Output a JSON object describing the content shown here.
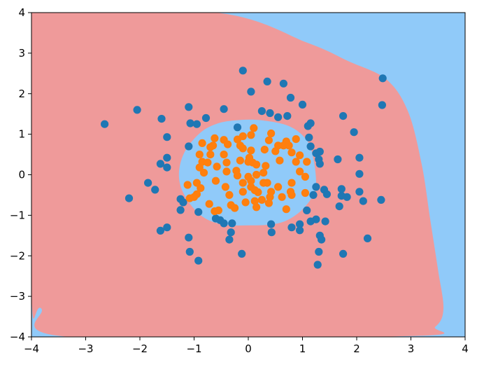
{
  "chart_data": {
    "type": "scatter",
    "title": "",
    "xlabel": "",
    "ylabel": "",
    "xlim": [
      -4,
      4
    ],
    "ylim": [
      -4,
      4
    ],
    "grid": false,
    "x_ticks": [
      -4,
      -3,
      -2,
      -1,
      0,
      1,
      2,
      3,
      4
    ],
    "y_ticks": [
      -4,
      -3,
      -2,
      -1,
      0,
      1,
      2,
      3,
      4
    ],
    "x_tick_labels": [
      "−4",
      "−3",
      "−2",
      "−1",
      "0",
      "1",
      "2",
      "3",
      "4"
    ],
    "y_tick_labels": [
      "−4",
      "−3",
      "−2",
      "−1",
      "0",
      "1",
      "2",
      "3",
      "4"
    ],
    "decision_regions": {
      "background_class_color": "#90caf9",
      "outer_class_color": "#ef9a9a",
      "outer_region_boundary": [
        [
          -4,
          3.98
        ],
        [
          -0.6,
          4
        ],
        [
          1.1,
          3.25
        ],
        [
          1.85,
          2.8
        ],
        [
          2.55,
          2.35
        ],
        [
          2.95,
          1.55
        ],
        [
          3.2,
          0.25
        ],
        [
          3.35,
          -1.05
        ],
        [
          3.5,
          -2.35
        ],
        [
          3.6,
          -3.3
        ],
        [
          3.45,
          -3.75
        ],
        [
          3.0,
          -3.98
        ],
        [
          -3.3,
          -4
        ],
        [
          -3.82,
          -3.3
        ],
        [
          -4,
          -2.95
        ]
      ],
      "inner_region_boundary": [
        [
          -0.25,
          1.34
        ],
        [
          0.2,
          1.35
        ],
        [
          0.75,
          1.2
        ],
        [
          1.08,
          0.85
        ],
        [
          1.2,
          0.4
        ],
        [
          1.25,
          -0.2
        ],
        [
          1.18,
          -0.55
        ],
        [
          0.92,
          -0.95
        ],
        [
          0.55,
          -1.2
        ],
        [
          0.0,
          -1.25
        ],
        [
          -0.5,
          -1.22
        ],
        [
          -0.88,
          -1.0
        ],
        [
          -1.18,
          -0.5
        ],
        [
          -1.28,
          0.0
        ],
        [
          -1.18,
          0.55
        ],
        [
          -0.9,
          1.02
        ],
        [
          -0.6,
          1.25
        ]
      ]
    },
    "series": [
      {
        "color": "#1f77b4",
        "points": [
          [
            -2.65,
            1.25
          ],
          [
            -2.05,
            1.6
          ],
          [
            -1.85,
            -0.2
          ],
          [
            -2.2,
            -0.58
          ],
          [
            -1.72,
            -0.37
          ],
          [
            -1.6,
            1.38
          ],
          [
            -1.5,
            0.93
          ],
          [
            -1.5,
            0.42
          ],
          [
            -1.62,
            0.27
          ],
          [
            -1.5,
            0.18
          ],
          [
            -1.5,
            -1.3
          ],
          [
            -1.62,
            -1.38
          ],
          [
            -1.1,
            1.67
          ],
          [
            -1.07,
            1.27
          ],
          [
            -0.95,
            1.25
          ],
          [
            -0.78,
            1.4
          ],
          [
            -0.45,
            1.62
          ],
          [
            -1.1,
            0.7
          ],
          [
            -1.25,
            -0.6
          ],
          [
            -1.2,
            -0.68
          ],
          [
            -1.25,
            -0.87
          ],
          [
            -0.92,
            -0.92
          ],
          [
            -0.6,
            -1.08
          ],
          [
            -0.52,
            -1.12
          ],
          [
            -0.45,
            -1.2
          ],
          [
            -0.3,
            -1.2
          ],
          [
            -1.1,
            -1.55
          ],
          [
            -1.08,
            -1.9
          ],
          [
            -0.92,
            -2.12
          ],
          [
            -0.32,
            -1.42
          ],
          [
            -0.35,
            -1.6
          ],
          [
            -0.12,
            -1.95
          ],
          [
            -0.2,
            1.17
          ],
          [
            -0.1,
            2.57
          ],
          [
            0.05,
            2.05
          ],
          [
            0.35,
            2.3
          ],
          [
            0.25,
            1.57
          ],
          [
            0.4,
            1.52
          ],
          [
            0.55,
            1.42
          ],
          [
            0.65,
            2.25
          ],
          [
            0.78,
            1.9
          ],
          [
            0.72,
            1.45
          ],
          [
            1.0,
            1.73
          ],
          [
            1.1,
            1.2
          ],
          [
            1.15,
            1.27
          ],
          [
            1.12,
            0.92
          ],
          [
            1.15,
            0.7
          ],
          [
            1.25,
            0.53
          ],
          [
            1.32,
            0.57
          ],
          [
            1.3,
            0.38
          ],
          [
            1.32,
            0.27
          ],
          [
            1.25,
            -0.3
          ],
          [
            1.4,
            -0.37
          ],
          [
            1.45,
            -0.48
          ],
          [
            1.2,
            -0.5
          ],
          [
            1.08,
            -0.88
          ],
          [
            1.25,
            -1.1
          ],
          [
            1.15,
            -1.15
          ],
          [
            0.95,
            -1.22
          ],
          [
            0.8,
            -1.3
          ],
          [
            0.95,
            -1.37
          ],
          [
            0.42,
            -1.22
          ],
          [
            0.43,
            -1.42
          ],
          [
            1.32,
            -1.5
          ],
          [
            1.35,
            -1.6
          ],
          [
            1.3,
            -1.9
          ],
          [
            1.28,
            -2.22
          ],
          [
            1.42,
            -1.15
          ],
          [
            1.65,
            0.38
          ],
          [
            1.75,
            1.45
          ],
          [
            1.95,
            1.05
          ],
          [
            2.05,
            0.42
          ],
          [
            2.05,
            0.02
          ],
          [
            1.72,
            -0.35
          ],
          [
            1.72,
            -0.52
          ],
          [
            1.82,
            -0.55
          ],
          [
            1.68,
            -0.78
          ],
          [
            2.05,
            -0.42
          ],
          [
            2.12,
            -0.65
          ],
          [
            2.2,
            -1.57
          ],
          [
            1.75,
            -1.95
          ],
          [
            2.48,
            2.38
          ],
          [
            2.47,
            1.72
          ],
          [
            2.45,
            -0.62
          ]
        ]
      },
      {
        "color": "#ff7f0e",
        "points": [
          [
            -0.85,
            0.78
          ],
          [
            -0.9,
            0.5
          ],
          [
            -0.85,
            0.32
          ],
          [
            -0.9,
            0.18
          ],
          [
            -0.82,
            0.05
          ],
          [
            -0.95,
            -0.2
          ],
          [
            -0.88,
            -0.33
          ],
          [
            -0.95,
            -0.48
          ],
          [
            -1.0,
            -0.55
          ],
          [
            -1.12,
            -0.25
          ],
          [
            -1.08,
            -0.58
          ],
          [
            -0.72,
            -0.72
          ],
          [
            -0.62,
            -0.9
          ],
          [
            -0.55,
            -0.88
          ],
          [
            -0.7,
            0.68
          ],
          [
            -0.65,
            0.72
          ],
          [
            -0.62,
            0.9
          ],
          [
            -0.45,
            0.86
          ],
          [
            -0.38,
            0.75
          ],
          [
            -0.4,
            0.3
          ],
          [
            -0.4,
            0.08
          ],
          [
            -0.42,
            -0.3
          ],
          [
            -0.35,
            -0.5
          ],
          [
            -0.32,
            -0.75
          ],
          [
            -0.25,
            -0.82
          ],
          [
            -0.2,
            0.87
          ],
          [
            -0.15,
            0.72
          ],
          [
            -0.1,
            0.65
          ],
          [
            -0.1,
            0.95
          ],
          [
            0.05,
            0.98
          ],
          [
            0.05,
            0.6
          ],
          [
            0.1,
            1.15
          ],
          [
            -0.15,
            0.35
          ],
          [
            0.0,
            0.32
          ],
          [
            0.08,
            0.3
          ],
          [
            0.15,
            0.25
          ],
          [
            -0.22,
            0.1
          ],
          [
            -0.2,
            -0.02
          ],
          [
            -0.1,
            -0.2
          ],
          [
            0.0,
            -0.05
          ],
          [
            0.05,
            -0.15
          ],
          [
            0.15,
            0.0
          ],
          [
            0.28,
            0.05
          ],
          [
            0.32,
            0.22
          ],
          [
            0.3,
            0.62
          ],
          [
            0.38,
            0.85
          ],
          [
            0.42,
            1.02
          ],
          [
            0.5,
            0.58
          ],
          [
            0.55,
            0.72
          ],
          [
            0.58,
            0.35
          ],
          [
            0.7,
            0.82
          ],
          [
            0.65,
            0.72
          ],
          [
            0.75,
            0.72
          ],
          [
            0.8,
            0.55
          ],
          [
            0.88,
            0.32
          ],
          [
            0.88,
            0.88
          ],
          [
            0.95,
            0.48
          ],
          [
            0.95,
            0.08
          ],
          [
            1.05,
            -0.05
          ],
          [
            1.08,
            0.32
          ],
          [
            0.8,
            -0.2
          ],
          [
            0.78,
            -0.42
          ],
          [
            0.8,
            -0.5
          ],
          [
            1.05,
            -0.45
          ],
          [
            0.62,
            -0.55
          ],
          [
            0.55,
            -0.3
          ],
          [
            0.42,
            -0.42
          ],
          [
            0.35,
            -0.2
          ],
          [
            0.38,
            -0.7
          ],
          [
            0.25,
            -0.62
          ],
          [
            0.15,
            -0.8
          ],
          [
            0.12,
            -0.65
          ],
          [
            0.18,
            -0.43
          ],
          [
            0.05,
            -0.3
          ],
          [
            0.12,
            -0.38
          ],
          [
            -0.05,
            -0.68
          ],
          [
            -0.1,
            -0.42
          ],
          [
            0.02,
            0.42
          ],
          [
            -0.6,
            -0.15
          ],
          [
            -0.58,
            0.2
          ],
          [
            -0.75,
            0.3
          ],
          [
            -0.7,
            0.5
          ],
          [
            -0.45,
            0.5
          ],
          [
            0.28,
            -0.2
          ],
          [
            0.7,
            -0.85
          ],
          [
            0.4,
            -0.55
          ]
        ]
      }
    ]
  }
}
